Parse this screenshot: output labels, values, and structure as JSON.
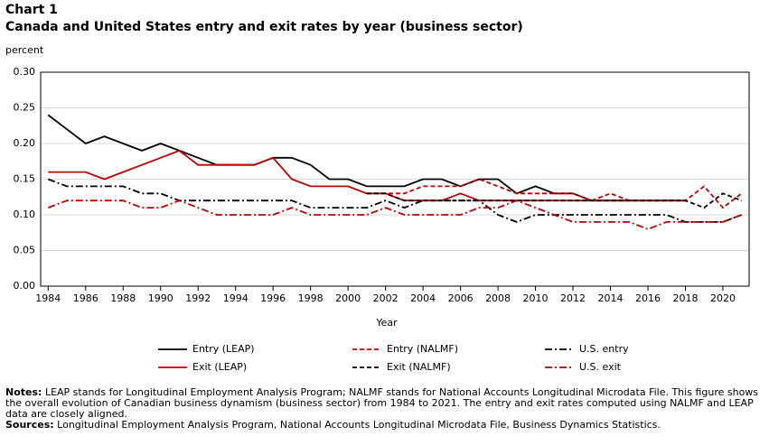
{
  "chart_data": {
    "type": "line",
    "chart_label": "Chart 1",
    "title": "Canada and United States entry and exit rates by year (business sector)",
    "y_unit_label": "percent",
    "xlabel": "Year",
    "x": [
      1984,
      1985,
      1986,
      1987,
      1988,
      1989,
      1990,
      1991,
      1992,
      1993,
      1994,
      1995,
      1996,
      1997,
      1998,
      1999,
      2000,
      2001,
      2002,
      2003,
      2004,
      2005,
      2006,
      2007,
      2008,
      2009,
      2010,
      2011,
      2012,
      2013,
      2014,
      2015,
      2016,
      2017,
      2018,
      2019,
      2020,
      2021
    ],
    "xlim": [
      1983.6,
      2021.4
    ],
    "xticks": [
      1984,
      1986,
      1988,
      1990,
      1992,
      1994,
      1996,
      1998,
      2000,
      2002,
      2004,
      2006,
      2008,
      2010,
      2012,
      2014,
      2016,
      2018,
      2020
    ],
    "ylim": [
      0,
      0.3
    ],
    "yticks": [
      {
        "value": 0,
        "label": "0.00"
      },
      {
        "value": 0.05,
        "label": "0.05"
      },
      {
        "value": 0.1,
        "label": "0.10"
      },
      {
        "value": 0.15,
        "label": "0.15"
      },
      {
        "value": 0.2,
        "label": "0.20"
      },
      {
        "value": 0.25,
        "label": "0.25"
      },
      {
        "value": 0.3,
        "label": "0.30"
      }
    ],
    "grid": true,
    "series": [
      {
        "name": "Entry (LEAP)",
        "color": "#000000",
        "dash": "solid",
        "values": [
          0.24,
          0.22,
          0.2,
          0.21,
          0.2,
          0.19,
          0.2,
          0.19,
          0.18,
          0.17,
          0.17,
          0.17,
          0.18,
          0.18,
          0.17,
          0.15,
          0.15,
          0.14,
          0.14,
          0.14,
          0.15,
          0.15,
          0.14,
          0.15,
          0.15,
          0.13,
          0.14,
          0.13,
          0.13,
          0.12,
          0.12,
          0.12,
          0.12,
          0.12,
          0.12,
          null,
          null,
          null
        ]
      },
      {
        "name": "Entry (NALMF)",
        "color": "#c00000",
        "dash": "dashed",
        "values": [
          null,
          null,
          null,
          null,
          null,
          null,
          null,
          null,
          null,
          null,
          null,
          null,
          null,
          null,
          null,
          null,
          null,
          0.13,
          0.13,
          0.13,
          0.14,
          0.14,
          0.14,
          0.15,
          0.14,
          0.13,
          0.13,
          0.13,
          0.13,
          0.12,
          0.13,
          0.12,
          0.12,
          0.12,
          0.12,
          0.14,
          0.11,
          0.13
        ]
      },
      {
        "name": "U.S. entry",
        "color": "#000000",
        "dash": "dashdot",
        "values": [
          0.15,
          0.14,
          0.14,
          0.14,
          0.14,
          0.13,
          0.13,
          0.12,
          0.12,
          0.12,
          0.12,
          0.12,
          0.12,
          0.12,
          0.11,
          0.11,
          0.11,
          0.11,
          0.12,
          0.11,
          0.12,
          0.12,
          0.12,
          0.12,
          0.1,
          0.09,
          0.1,
          0.1,
          0.1,
          0.1,
          0.1,
          0.1,
          0.1,
          0.1,
          0.09,
          0.09,
          0.09,
          0.1
        ]
      },
      {
        "name": "Exit (LEAP)",
        "color": "#c00000",
        "dash": "solid",
        "values": [
          0.16,
          0.16,
          0.16,
          0.15,
          0.16,
          0.17,
          0.18,
          0.19,
          0.17,
          0.17,
          0.17,
          0.17,
          0.18,
          0.15,
          0.14,
          0.14,
          0.14,
          0.13,
          0.13,
          0.12,
          0.12,
          0.12,
          0.13,
          0.12,
          0.12,
          0.12,
          0.12,
          0.12,
          0.12,
          0.12,
          0.12,
          0.12,
          0.12,
          0.12,
          0.12,
          null,
          null,
          null
        ]
      },
      {
        "name": "Exit (NALMF)",
        "color": "#000000",
        "dash": "dashed",
        "values": [
          null,
          null,
          null,
          null,
          null,
          null,
          null,
          null,
          null,
          null,
          null,
          null,
          null,
          null,
          null,
          null,
          null,
          0.13,
          0.13,
          0.12,
          0.12,
          0.12,
          0.12,
          0.12,
          0.12,
          0.12,
          0.12,
          0.12,
          0.12,
          0.12,
          0.12,
          0.12,
          0.12,
          0.12,
          0.12,
          0.11,
          0.13,
          0.12
        ]
      },
      {
        "name": "U.S. exit",
        "color": "#c00000",
        "dash": "dashdot",
        "values": [
          0.11,
          0.12,
          0.12,
          0.12,
          0.12,
          0.11,
          0.11,
          0.12,
          0.11,
          0.1,
          0.1,
          0.1,
          0.1,
          0.11,
          0.1,
          0.1,
          0.1,
          0.1,
          0.11,
          0.1,
          0.1,
          0.1,
          0.1,
          0.11,
          0.11,
          0.12,
          0.11,
          0.1,
          0.09,
          0.09,
          0.09,
          0.09,
          0.08,
          0.09,
          0.09,
          0.09,
          0.09,
          0.1
        ]
      }
    ],
    "notes": {
      "label": "Notes:",
      "text": "LEAP stands for Longitudinal Employment Analysis Program; NALMF stands for National Accounts Longitudinal Microdata File. This figure shows the overall evolution of Canadian business dynamism (business sector) from 1984 to 2021. The entry and exit rates computed using NALMF and LEAP data are closely aligned."
    },
    "sources": {
      "label": "Sources:",
      "text": "Longitudinal Employment Analysis Program, National Accounts Longitudinal Microdata File, Business Dynamics Statistics."
    }
  }
}
